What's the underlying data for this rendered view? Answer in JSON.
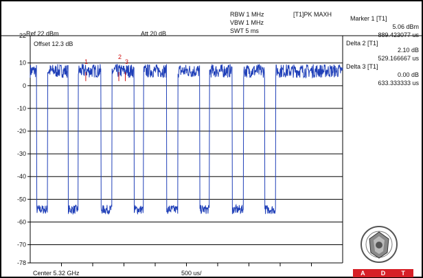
{
  "header": {
    "ref": "Ref 22 dBm",
    "att": "Att  20 dB",
    "rbw": "RBW 1 MHz",
    "vbw": "VBW 1 MHz",
    "swt": "SWT 5 ms",
    "trace_mode": "[T1]PK MAXH",
    "offset": "Offset 12.3 dB"
  },
  "markers": {
    "m1_title": "Marker 1 [T1]",
    "m1_level": "5.06 dBm",
    "m1_time": "889.423077 us",
    "d2_title": "Delta 2 [T1]",
    "d2_level": "2.10 dB",
    "d2_time": "529.166667 us",
    "d3_title": "Delta 3 [T1]",
    "d3_level": "0.00 dB",
    "d3_time": "633.333333 us",
    "label_1": "1",
    "label_2": "2",
    "label_3": "3"
  },
  "footer": {
    "center": "Center 5.32 GHz",
    "span": "500 us/"
  },
  "logo": {
    "adt_a": "A",
    "adt_d": "D",
    "adt_t": "T"
  },
  "colors": {
    "trace": "#1f3fb8",
    "marker": "#d01010",
    "grid": "#000000",
    "adt": "#d61f26"
  },
  "chart_data": {
    "type": "line",
    "y_tick_labels": [
      "22",
      "10",
      "0",
      "-10",
      "-20",
      "-30",
      "-40",
      "-50",
      "-60",
      "-70",
      "-78"
    ],
    "ylim": [
      -78,
      22
    ],
    "xlim_us": [
      0,
      5000
    ],
    "x_div_us": 500,
    "ref_level_dbm": 22,
    "series": [
      {
        "pulse_on_level_dbm": 7,
        "pulse_off_level_dbm": -54,
        "off_intervals_us": [
          [
            104,
            277
          ],
          [
            610,
            767
          ],
          [
            1133,
            1307
          ],
          [
            1661,
            1813
          ],
          [
            2185,
            2362
          ],
          [
            2712,
            2865
          ],
          [
            3233,
            3412
          ],
          [
            3753,
            3925
          ]
        ]
      }
    ]
  }
}
